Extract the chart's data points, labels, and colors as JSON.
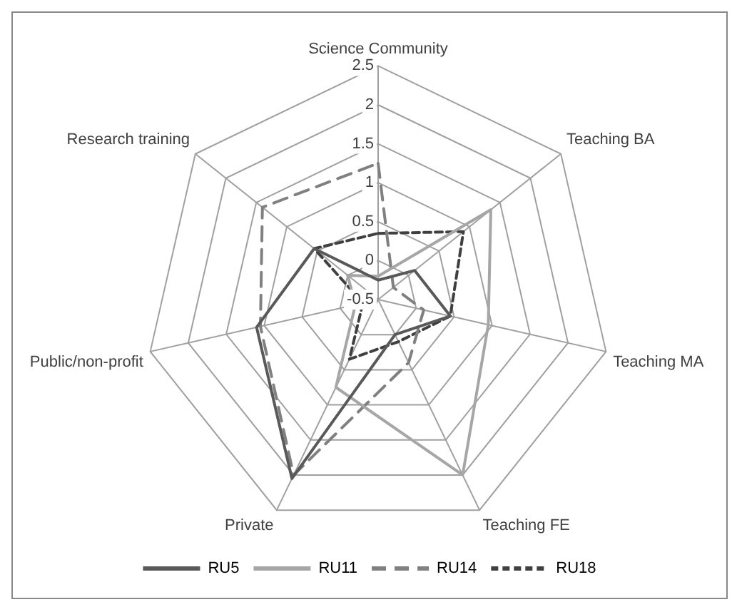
{
  "chart_data": {
    "type": "radar",
    "categories": [
      "Science Community",
      "Teaching BA",
      "Teaching MA",
      "Teaching FE",
      "Private",
      "Public/non-profit",
      "Research training"
    ],
    "series": [
      {
        "name": "RU5",
        "color": "#595959",
        "line_style": "solid",
        "values": [
          -0.25,
          0.1,
          0.45,
          0,
          2.05,
          1.1,
          0.55
        ]
      },
      {
        "name": "RU11",
        "color": "#a6a6a6",
        "line_style": "solid",
        "values": [
          -0.2,
          1.35,
          0.95,
          2,
          0.75,
          -0.2,
          0
        ]
      },
      {
        "name": "RU14",
        "color": "#808080",
        "line_style": "dashed",
        "values": [
          1.25,
          -0.25,
          0.1,
          0.4,
          2,
          1.05,
          1.4
        ]
      },
      {
        "name": "RU18",
        "color": "#404040",
        "line_style": "dotted",
        "values": [
          0.35,
          0.9,
          0.45,
          0.1,
          0.35,
          -0.3,
          0.55
        ]
      }
    ],
    "ylim": [
      -0.5,
      2.5
    ],
    "yticks": [
      -0.5,
      0,
      0.5,
      1,
      1.5,
      2,
      2.5
    ],
    "grid": true,
    "legend": "bottom",
    "marker": "none"
  }
}
